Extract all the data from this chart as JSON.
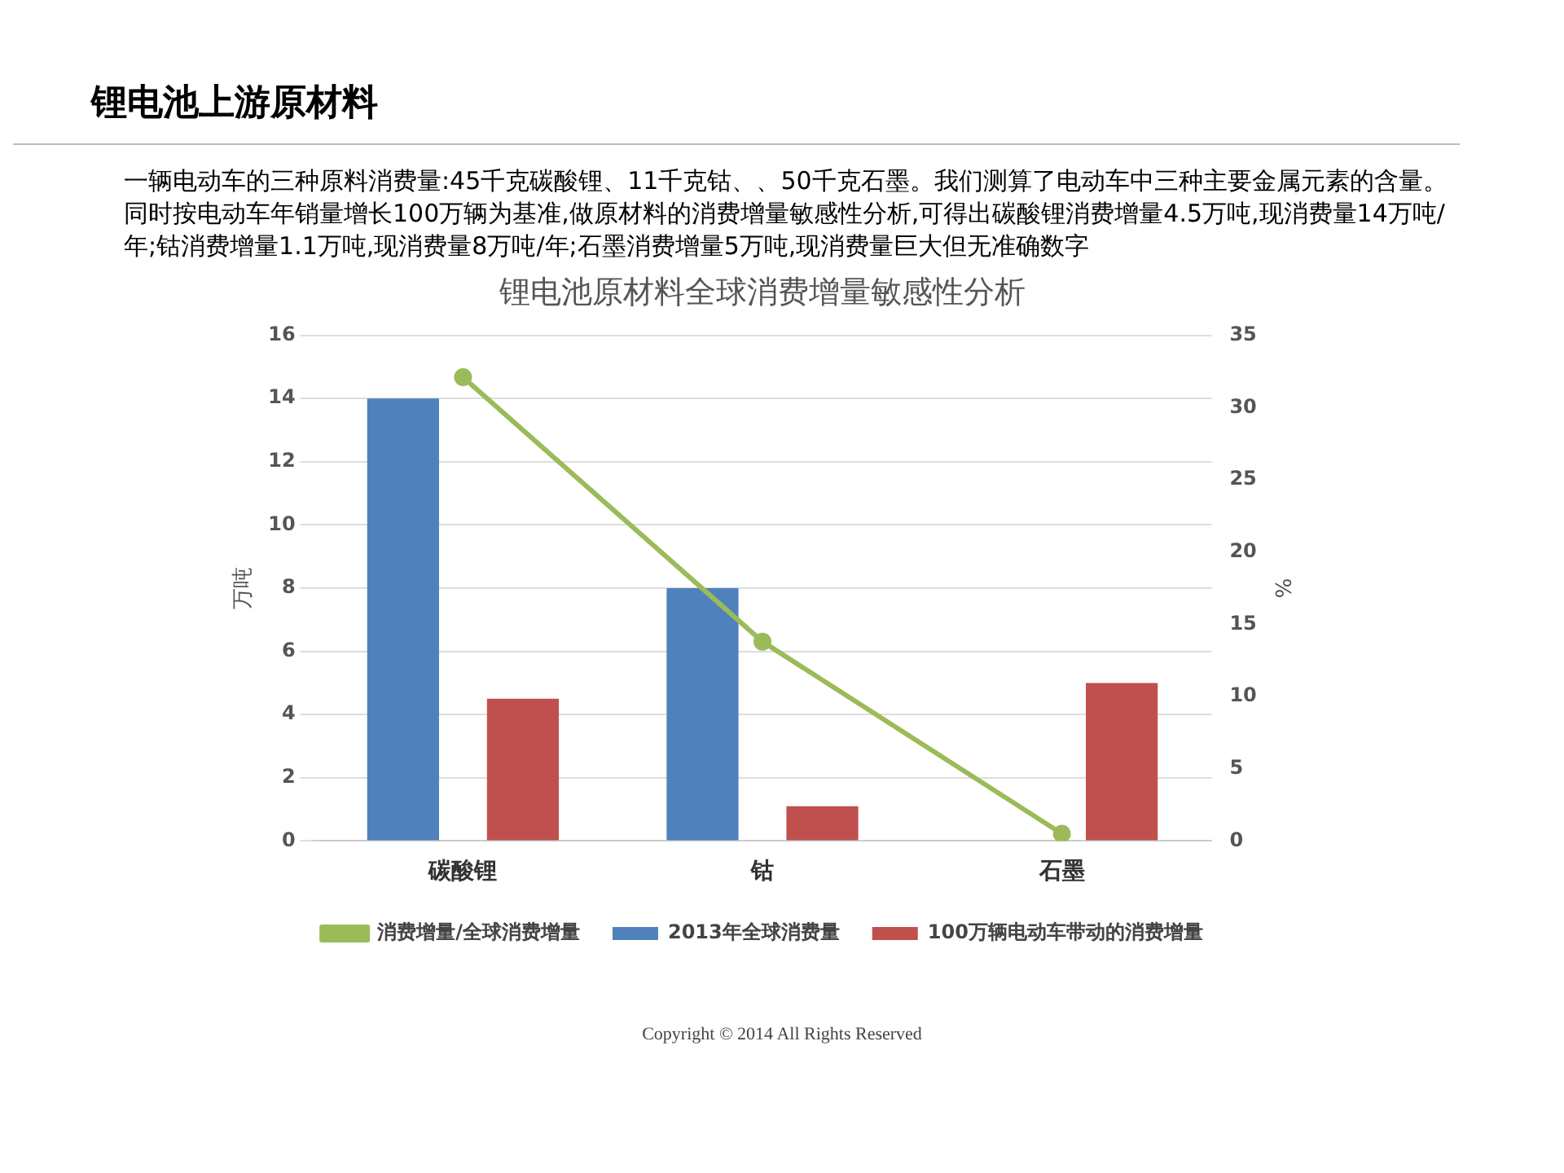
{
  "chart_data": {
    "type": "bar",
    "title": "锂电池上游原材料",
    "subtitle": "锂电池原材料全球消费增量敏感性分析",
    "annotations": [
      "一辆电动车的三种原料消费量:45千克碳酸锂、11千克钴、、50千克石墨。我们测算了电动车中三种主要金属元素的含量。同时按电动车年销量增长100万辆为基准,做原材料的消费增量敏感性分析,可得出碳酸锂消费增量4.5万吨,现消费量14万吨/年;钴消费增量1.1万吨,现消费量8万吨/年;石墨消费增量5万吨,现消费量巨大但无准确数字",
      "Copyright © 2014 All Rights Reserved"
    ],
    "ylabel": "万吨",
    "y2label": "%",
    "categories": [
      "碳酸锂",
      "钴",
      "石墨"
    ],
    "series": [
      {
        "name": "2013年全球消费量",
        "color": "#4f81bd",
        "values": [
          14,
          8,
          null
        ]
      },
      {
        "name": "100万辆电动车带动的消费增量",
        "color": "#c0504d",
        "values": [
          4.5,
          1.1,
          5
        ]
      },
      {
        "name": "消费增量/全球消费增量",
        "type": "line",
        "axis": "y2",
        "color": "#9bbb59",
        "values": [
          32.1,
          13.8,
          0.5
        ]
      }
    ],
    "ylim": [
      0,
      16
    ],
    "yticks": [
      0,
      2,
      4,
      6,
      8,
      10,
      12,
      14,
      16
    ],
    "y2lim": [
      0,
      35
    ],
    "y2ticks": [
      0,
      5,
      10,
      15,
      20,
      25,
      30,
      35
    ],
    "grid": "y",
    "legend": "bottom",
    "marker": "circle",
    "line_style": "solid"
  }
}
